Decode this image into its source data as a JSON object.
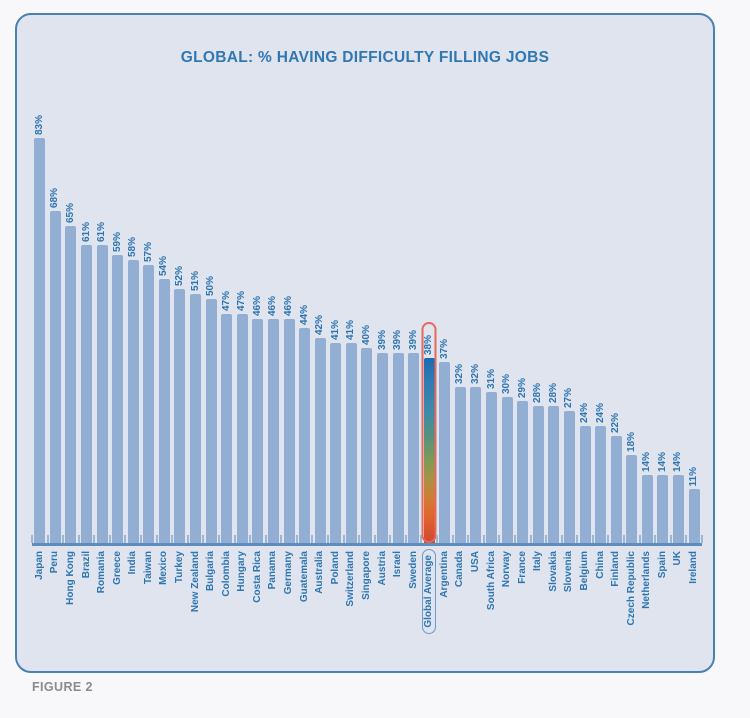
{
  "figure": {
    "label": "FIGURE 2"
  },
  "chart_data": {
    "type": "bar",
    "title": "GLOBAL: % HAVING DIFFICULTY FILLING JOBS",
    "categories": [
      "Japan",
      "Peru",
      "Hong Kong",
      "Brazil",
      "Romania",
      "Greece",
      "India",
      "Taiwan",
      "Mexico",
      "Turkey",
      "New Zealand",
      "Bulgaria",
      "Colombia",
      "Hungary",
      "Costa Rica",
      "Panama",
      "Germany",
      "Guatemala",
      "Australia",
      "Poland",
      "Switzerland",
      "Singapore",
      "Austria",
      "Israel",
      "Sweden",
      "Global Average",
      "Argentina",
      "Canada",
      "USA",
      "South Africa",
      "Norway",
      "France",
      "Italy",
      "Slovakia",
      "Slovenia",
      "Belgium",
      "China",
      "Finland",
      "Czech Republic",
      "Netherlands",
      "Spain",
      "UK",
      "Ireland"
    ],
    "values": [
      83,
      68,
      65,
      61,
      61,
      59,
      58,
      57,
      54,
      52,
      51,
      50,
      47,
      47,
      46,
      46,
      46,
      44,
      42,
      41,
      41,
      40,
      39,
      39,
      39,
      38,
      37,
      32,
      32,
      31,
      30,
      29,
      28,
      28,
      27,
      24,
      24,
      22,
      18,
      14,
      14,
      14,
      11
    ],
    "value_labels": [
      "83%",
      "68%",
      "65%",
      "61%",
      "61%",
      "59%",
      "58%",
      "57%",
      "54%",
      "52%",
      "51%",
      "50%",
      "47%",
      "47%",
      "46%",
      "46%",
      "46%",
      "44%",
      "42%",
      "41%",
      "41%",
      "40%",
      "39%",
      "39%",
      "39%",
      "38%",
      "37%",
      "32%",
      "32%",
      "31%",
      "30%",
      "29%",
      "28%",
      "28%",
      "27%",
      "24%",
      "24%",
      "22%",
      "18%",
      "14%",
      "14%",
      "14%",
      "11%"
    ],
    "highlight": {
      "category": "Global Average",
      "value": 38,
      "index": 25,
      "outline_color": "#e56a5b",
      "label_outline_color": "#6e9ac8",
      "bar_gradient": [
        "#1b6bad",
        "#2e7ab3",
        "#3f88ab",
        "#55917f",
        "#7d9a58",
        "#ab9143",
        "#d07c35",
        "#e0642e",
        "#d04632"
      ]
    },
    "ylim": [
      0,
      85
    ],
    "grid": false,
    "legend": false,
    "bar_color": "#92aed3",
    "axis_color": "#5e8cbd",
    "label_color": "#2e75af",
    "panel_background": "#dfe4ef",
    "panel_border_color": "#4a80b4"
  }
}
